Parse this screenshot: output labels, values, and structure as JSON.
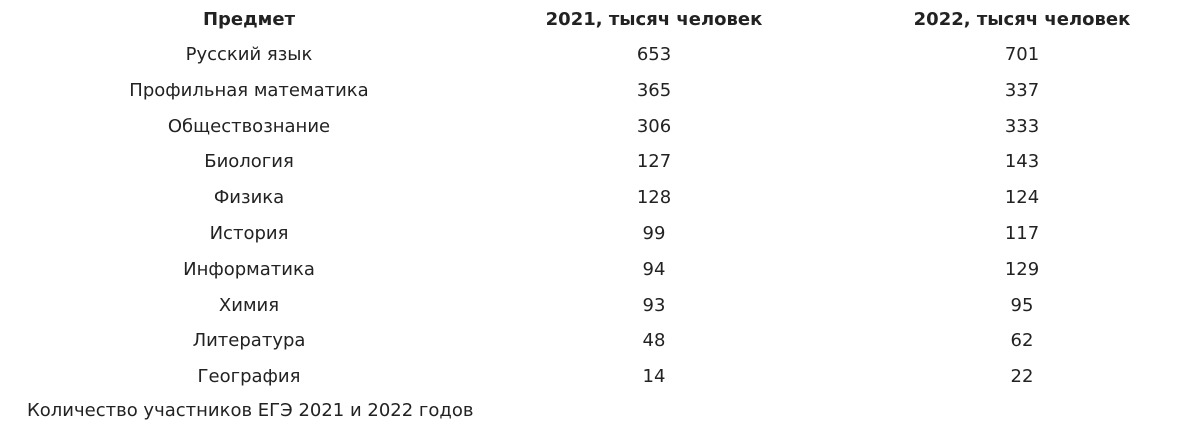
{
  "table": {
    "headers": [
      "Предмет",
      "2021, тысяч человек",
      "2022, тысяч человек"
    ],
    "rows": [
      [
        "Русский язык",
        653,
        701
      ],
      [
        "Профильная математика",
        365,
        337
      ],
      [
        "Обществознание",
        306,
        333
      ],
      [
        "Биология",
        127,
        143
      ],
      [
        "Физика",
        128,
        124
      ],
      [
        "История",
        99,
        117
      ],
      [
        "Информатика",
        94,
        129
      ],
      [
        "Химия",
        93,
        95
      ],
      [
        "Литература",
        48,
        62
      ],
      [
        "География",
        14,
        22
      ]
    ],
    "caption": "Количество участников ЕГЭ 2021 и 2022 годов"
  }
}
